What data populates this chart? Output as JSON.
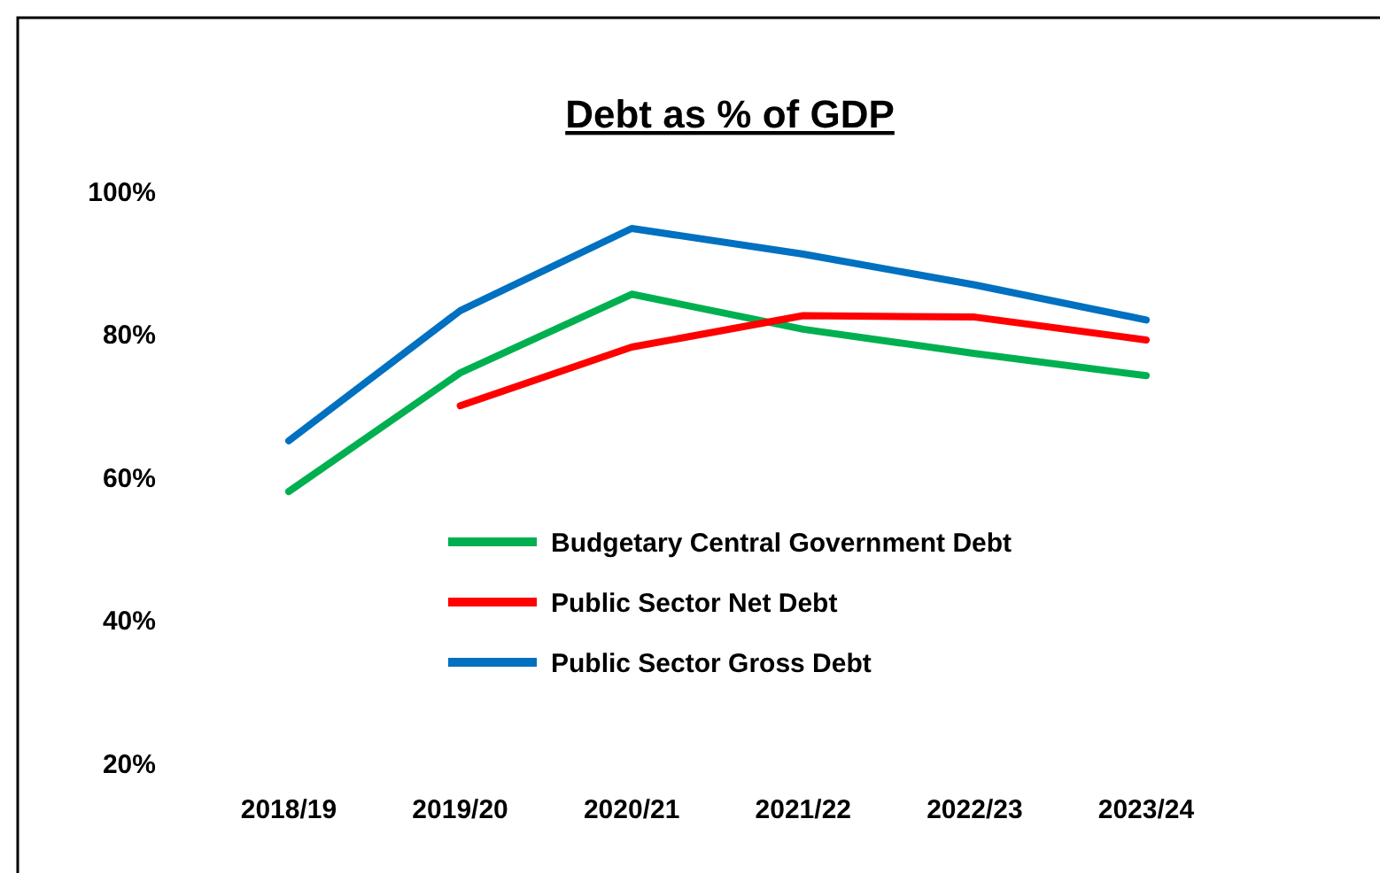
{
  "chart_data": {
    "type": "line",
    "title": "Debt as % of GDP",
    "categories": [
      "2018/19",
      "2019/20",
      "2020/21",
      "2021/22",
      "2022/23",
      "2023/24"
    ],
    "series": [
      {
        "name": "Budgetary Central Government Debt",
        "color": "#00b050",
        "values": [
          58,
          74.6,
          85.6,
          80.7,
          77.3,
          74.2
        ]
      },
      {
        "name": "Public Sector Net Debt",
        "color": "#ff0000",
        "values": [
          null,
          70,
          78.2,
          82.6,
          82.4,
          79.2
        ]
      },
      {
        "name": "Public Sector Gross Debt",
        "color": "#0070c0",
        "values": [
          65.1,
          83.3,
          94.8,
          91.2,
          86.9,
          82
        ]
      }
    ],
    "ylim": [
      20,
      100
    ],
    "yticks": [
      {
        "value": 20,
        "label": "20%"
      },
      {
        "value": 40,
        "label": "40%"
      },
      {
        "value": 60,
        "label": "60%"
      },
      {
        "value": 80,
        "label": "80%"
      },
      {
        "value": 100,
        "label": "100%"
      }
    ],
    "grid": false,
    "legend": "center",
    "marker": "none",
    "line_style": "solid"
  }
}
